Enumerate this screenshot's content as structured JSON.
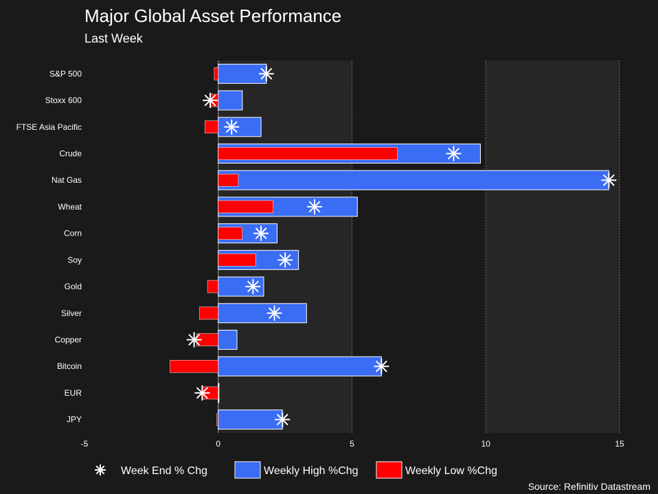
{
  "chart_data": {
    "type": "bar",
    "title": "Major Global Asset Performance",
    "subtitle": "Last Week",
    "source": "Source: Refinitiv Datastream",
    "categories": [
      "S&P 500",
      "Stoxx 600",
      "FTSE Asia Pacific",
      "Crude",
      "Nat Gas",
      "Wheat",
      "Corn",
      "Soy",
      "Gold",
      "Silver",
      "Copper",
      "Bitcoin",
      "EUR",
      "JPY"
    ],
    "series": [
      {
        "name": "Week End % Chg",
        "kind": "marker",
        "values": [
          1.8,
          -0.3,
          0.5,
          8.8,
          14.6,
          3.6,
          1.6,
          2.5,
          1.3,
          2.1,
          -0.9,
          6.1,
          -0.6,
          2.4
        ]
      },
      {
        "name": "Weekly High %Chg",
        "kind": "bar",
        "values": [
          1.8,
          0.9,
          1.6,
          9.8,
          14.6,
          5.2,
          2.2,
          3.0,
          1.7,
          3.3,
          0.7,
          6.1,
          0.0,
          2.4
        ]
      },
      {
        "name": "Weekly Low %Chg",
        "kind": "bar",
        "values": [
          -0.15,
          -0.3,
          -0.5,
          6.7,
          0.75,
          2.05,
          0.9,
          1.4,
          -0.4,
          -0.7,
          -0.8,
          -1.8,
          -0.6,
          -0.05
        ]
      }
    ],
    "xlim": [
      -5,
      15
    ],
    "xticks": [
      -5,
      0,
      5,
      10,
      15
    ],
    "grid": true,
    "legend_position": "bottom",
    "colors": {
      "background": "#1a1a1a",
      "plot_band": "#262626",
      "high": "#3a6cf4",
      "low": "#ff0000",
      "marker": "#ffffff",
      "grid": "#707070"
    }
  }
}
